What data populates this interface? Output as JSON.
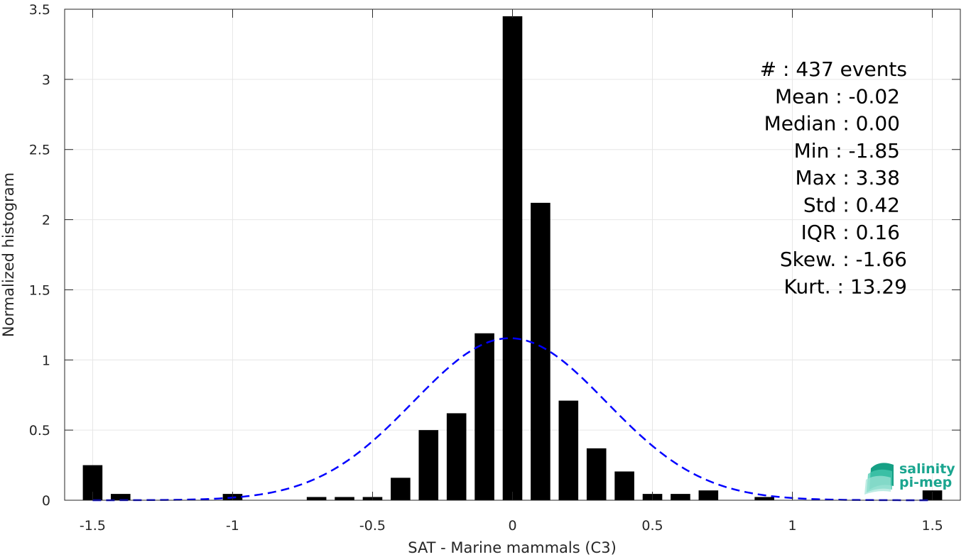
{
  "chart_data": {
    "type": "bar",
    "xlabel": "SAT - Marine mammals (C3)",
    "ylabel": "Normalized histogram",
    "xlim": [
      -1.6,
      1.6
    ],
    "ylim": [
      0,
      3.5
    ],
    "xticks": [
      -1.5,
      -1,
      -0.5,
      0,
      0.5,
      1,
      1.5
    ],
    "xtick_labels": [
      "-1.5",
      "-1",
      "-0.5",
      "0",
      "0.5",
      "1",
      "1.5"
    ],
    "yticks": [
      0,
      0.5,
      1,
      1.5,
      2,
      2.5,
      3,
      3.5
    ],
    "ytick_labels": [
      "0",
      "0.5",
      "1",
      "1.5",
      "2",
      "2.5",
      "3",
      "3.5"
    ],
    "grid": true,
    "bin_width": 0.1,
    "bar_color": "#000000",
    "bars": [
      {
        "x": -1.5,
        "y": 0.25
      },
      {
        "x": -1.4,
        "y": 0.045
      },
      {
        "x": -1.0,
        "y": 0.045
      },
      {
        "x": -0.7,
        "y": 0.023
      },
      {
        "x": -0.6,
        "y": 0.023
      },
      {
        "x": -0.5,
        "y": 0.023
      },
      {
        "x": -0.4,
        "y": 0.16
      },
      {
        "x": -0.3,
        "y": 0.5
      },
      {
        "x": -0.2,
        "y": 0.62
      },
      {
        "x": -0.1,
        "y": 1.19
      },
      {
        "x": 0.0,
        "y": 3.45
      },
      {
        "x": 0.1,
        "y": 2.12
      },
      {
        "x": 0.2,
        "y": 0.71
      },
      {
        "x": 0.3,
        "y": 0.37
      },
      {
        "x": 0.4,
        "y": 0.205
      },
      {
        "x": 0.5,
        "y": 0.045
      },
      {
        "x": 0.6,
        "y": 0.045
      },
      {
        "x": 0.7,
        "y": 0.07
      },
      {
        "x": 0.9,
        "y": 0.023
      },
      {
        "x": 1.5,
        "y": 0.07
      }
    ],
    "fit_curve": {
      "type": "gaussian",
      "mean": -0.01,
      "std": 0.345,
      "peak": 1.155,
      "x_range": [
        -1.5,
        1.5
      ],
      "color": "#0000ff",
      "style": "dashed"
    }
  },
  "stats": [
    {
      "text": "#  : 437 events",
      "right": false
    },
    {
      "text": "Mean : -0.02",
      "right": true
    },
    {
      "text": "Median : 0.00",
      "right": true
    },
    {
      "text": "Min : -1.85",
      "right": true
    },
    {
      "text": "Max : 3.38",
      "right": true
    },
    {
      "text": "Std : 0.42",
      "right": true
    },
    {
      "text": "IQR : 0.16",
      "right": true
    },
    {
      "text": "Skew. : -1.66",
      "right": false
    },
    {
      "text": "Kurt. : 13.29",
      "right": false
    }
  ],
  "logo": {
    "line1": "salinity",
    "line2": "pi-mep",
    "color": "#1aa58f"
  }
}
